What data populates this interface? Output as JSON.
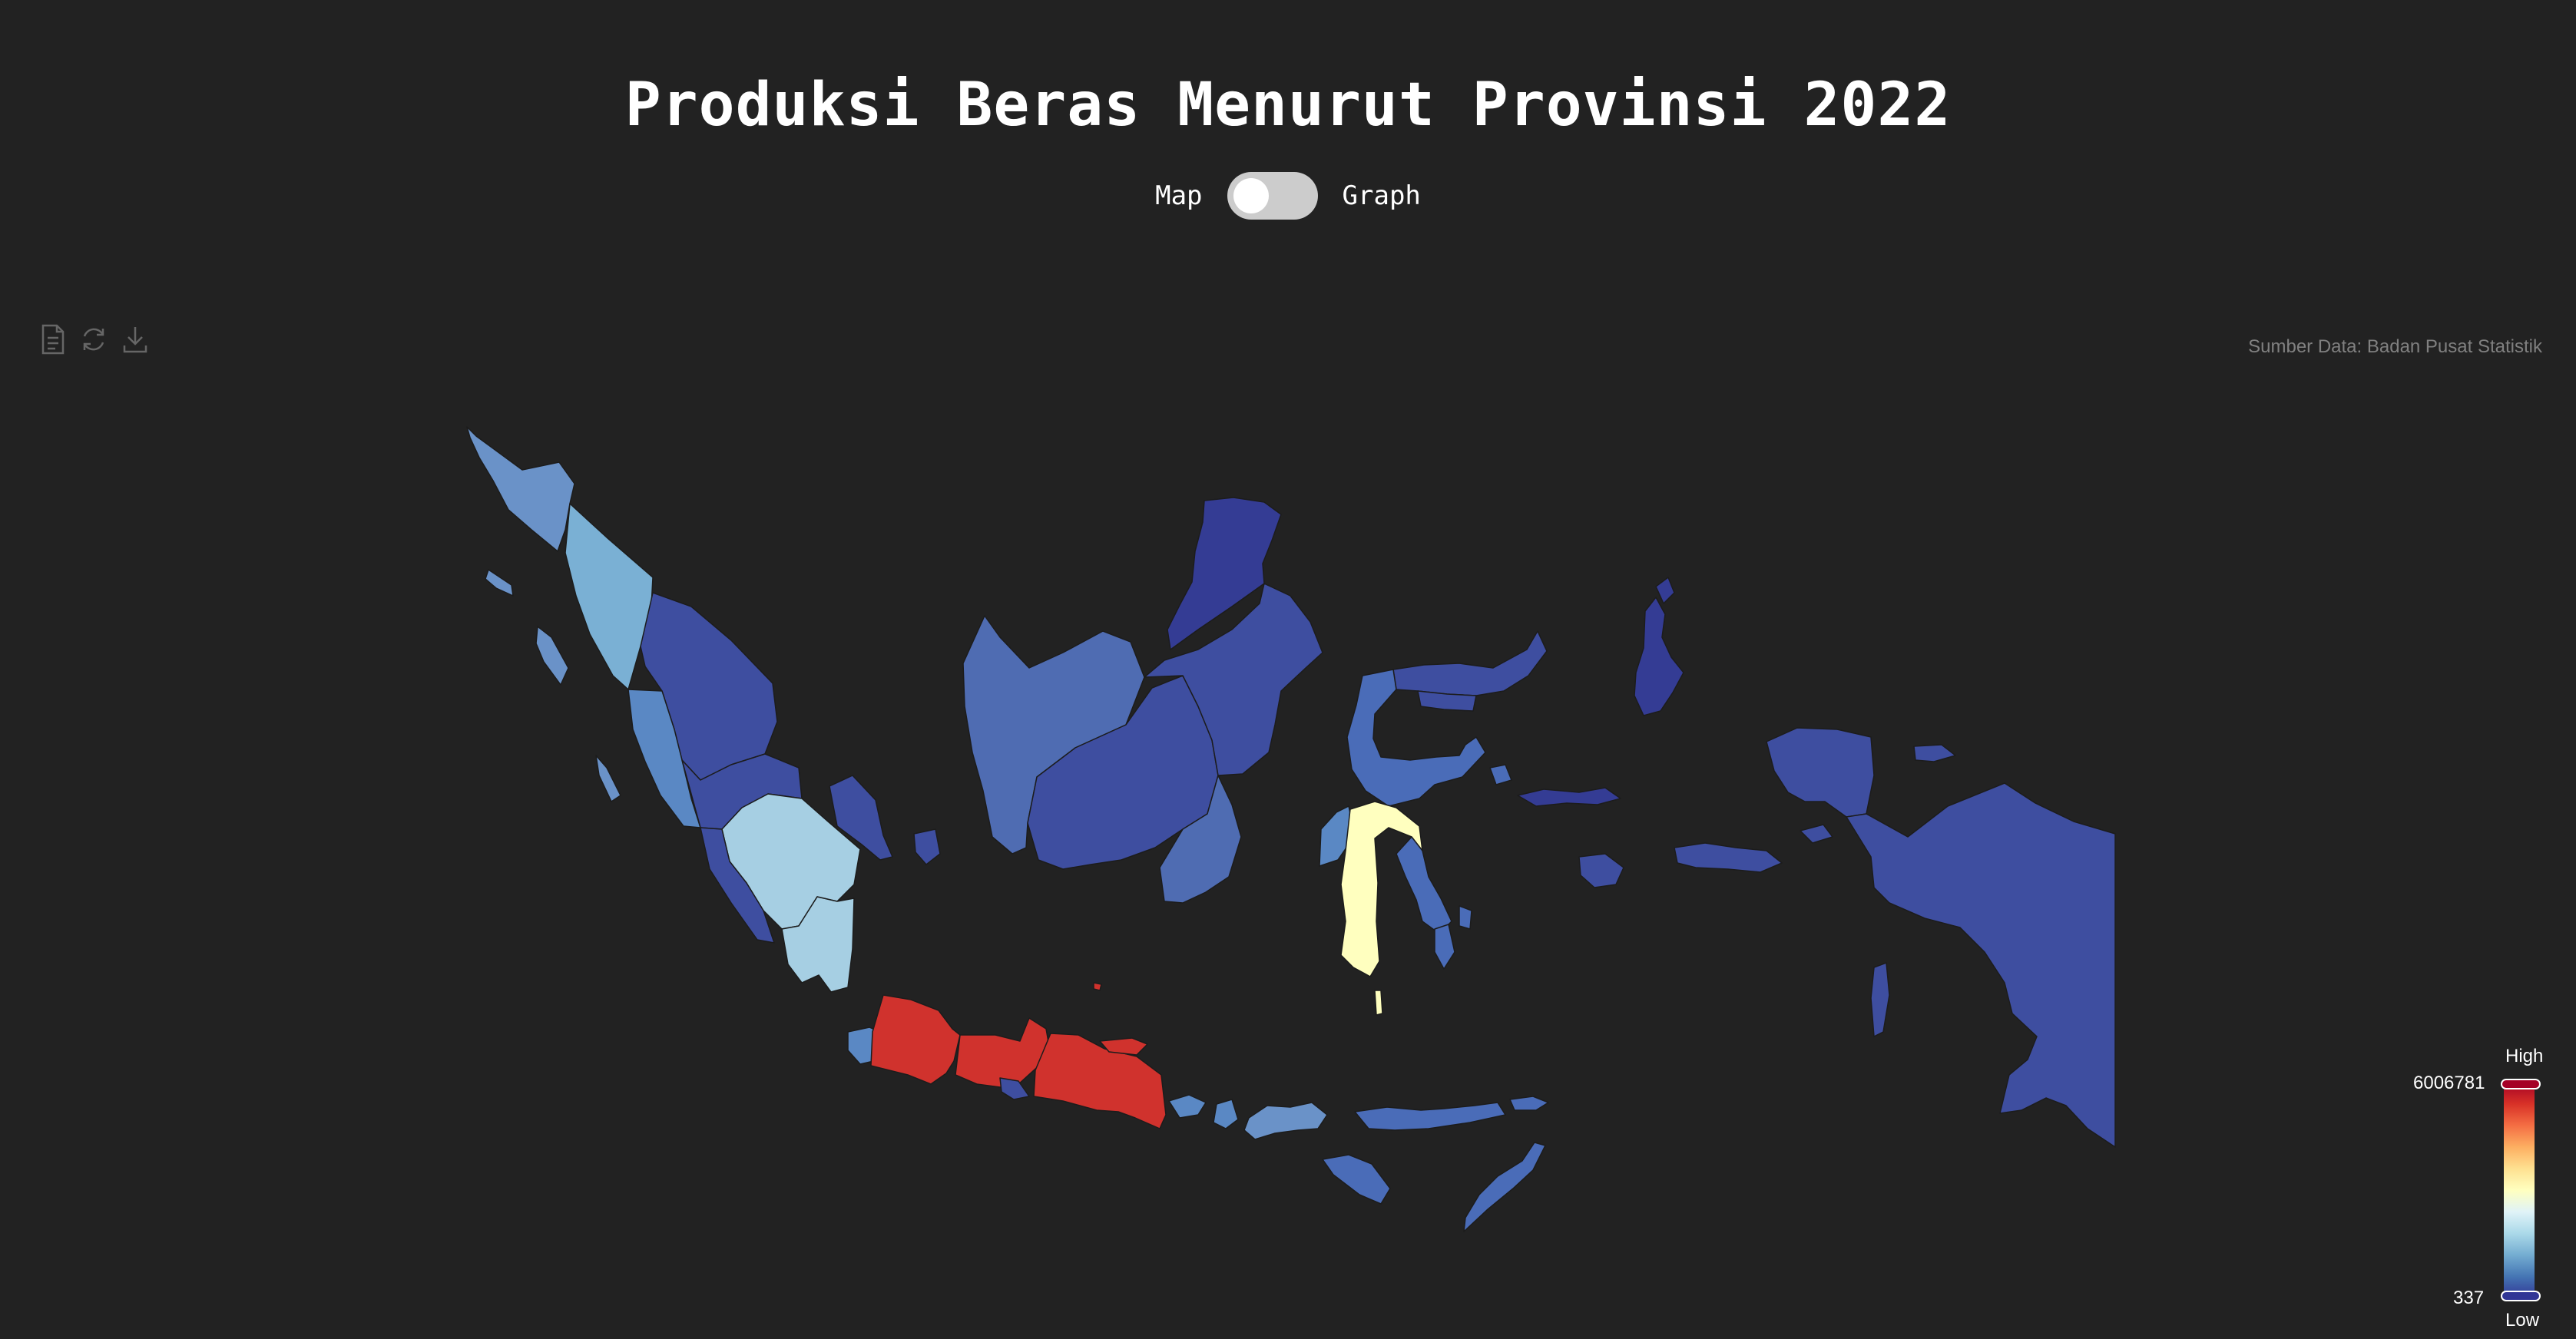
{
  "header": {
    "title": "Produksi Beras Menurut Provinsi 2022"
  },
  "view_toggle": {
    "left_label": "Map",
    "right_label": "Graph",
    "state": "map"
  },
  "toolbox": {
    "icons": [
      "data-view-icon",
      "restore-icon",
      "save-image-icon"
    ]
  },
  "source_note": "Sumber Data: Badan Pusat Statistik",
  "legend": {
    "high_label": "High",
    "low_label": "Low",
    "max_value": "6006781",
    "min_value": "337",
    "colors": [
      "#a50026",
      "#d73027",
      "#f46d43",
      "#fdae61",
      "#fee090",
      "#ffffbf",
      "#e0f3f8",
      "#abd9e9",
      "#74add1",
      "#4575b4",
      "#313695"
    ]
  }
}
